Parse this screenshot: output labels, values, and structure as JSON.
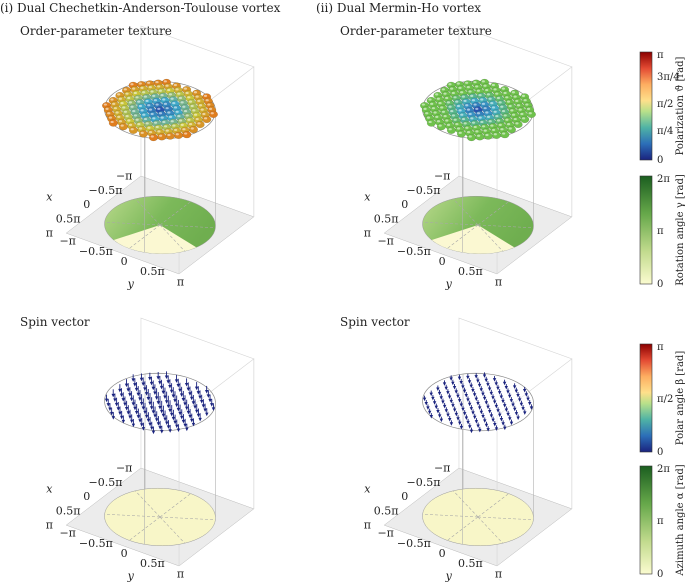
{
  "panels": [
    {
      "id": "dcat",
      "header": "(i) Dual Chechetkin-Anderson-Toulouse vortex",
      "texture_title": "Order-parameter texture",
      "spin_title": "Spin vector"
    },
    {
      "id": "dmh",
      "header": "(ii) Dual Mermin-Ho vortex",
      "texture_title": "Order-parameter texture",
      "spin_title": "Spin vector"
    }
  ],
  "axes": {
    "x_label": "x",
    "y_label": "y",
    "x_ticks": [
      "−π",
      "−0.5π",
      "0",
      "0.5π",
      "π"
    ],
    "y_ticks": [
      "π",
      "0.5π",
      "0",
      "−0.5π",
      "−π"
    ]
  },
  "colorbars": [
    {
      "id": "polarization",
      "label": "Polarization ϑ [rad]",
      "ticks": [
        "π",
        "3π/4",
        "π/2",
        "π/4",
        "0"
      ],
      "palette": "jet",
      "stops": [
        "#8b0000",
        "#d73027",
        "#f46d43",
        "#fdae61",
        "#fee08b",
        "#d9ef8b",
        "#a6d96a",
        "#66bd63",
        "#3ba4c9",
        "#2166ac",
        "#1a237e"
      ]
    },
    {
      "id": "rotation",
      "label": "Rotation angle γ [rad]",
      "ticks": [
        "2π",
        "π",
        "0"
      ],
      "palette": "greens",
      "stops": [
        "#1b5e20",
        "#66a84a",
        "#b7d486",
        "#fbfbd0"
      ]
    },
    {
      "id": "polar",
      "label": "Polar angle β [rad]",
      "ticks": [
        "π",
        "π/2",
        "0"
      ],
      "palette": "jet",
      "stops": [
        "#8b0000",
        "#d73027",
        "#f46d43",
        "#fdae61",
        "#fee08b",
        "#d9ef8b",
        "#a6d96a",
        "#66bd63",
        "#3ba4c9",
        "#2166ac",
        "#1a237e"
      ]
    },
    {
      "id": "azimuth",
      "label": "Azimuth angle α [rad]",
      "ticks": [
        "2π",
        "π",
        "0"
      ],
      "palette": "greens",
      "stops": [
        "#1b5e20",
        "#66a84a",
        "#b7d486",
        "#fbfbd0"
      ]
    }
  ],
  "colors": {
    "sphere_outer_dcat": "#e07b1d",
    "sphere_mid_dcat": "#c8c63a",
    "sphere_green": "#6fc24c",
    "sphere_center": "#2a55b0",
    "arrow": "#1a237e",
    "floor_green": "#7cb95a",
    "floor_pale": "#f8f6c8",
    "grid": "#9a9a9a"
  }
}
